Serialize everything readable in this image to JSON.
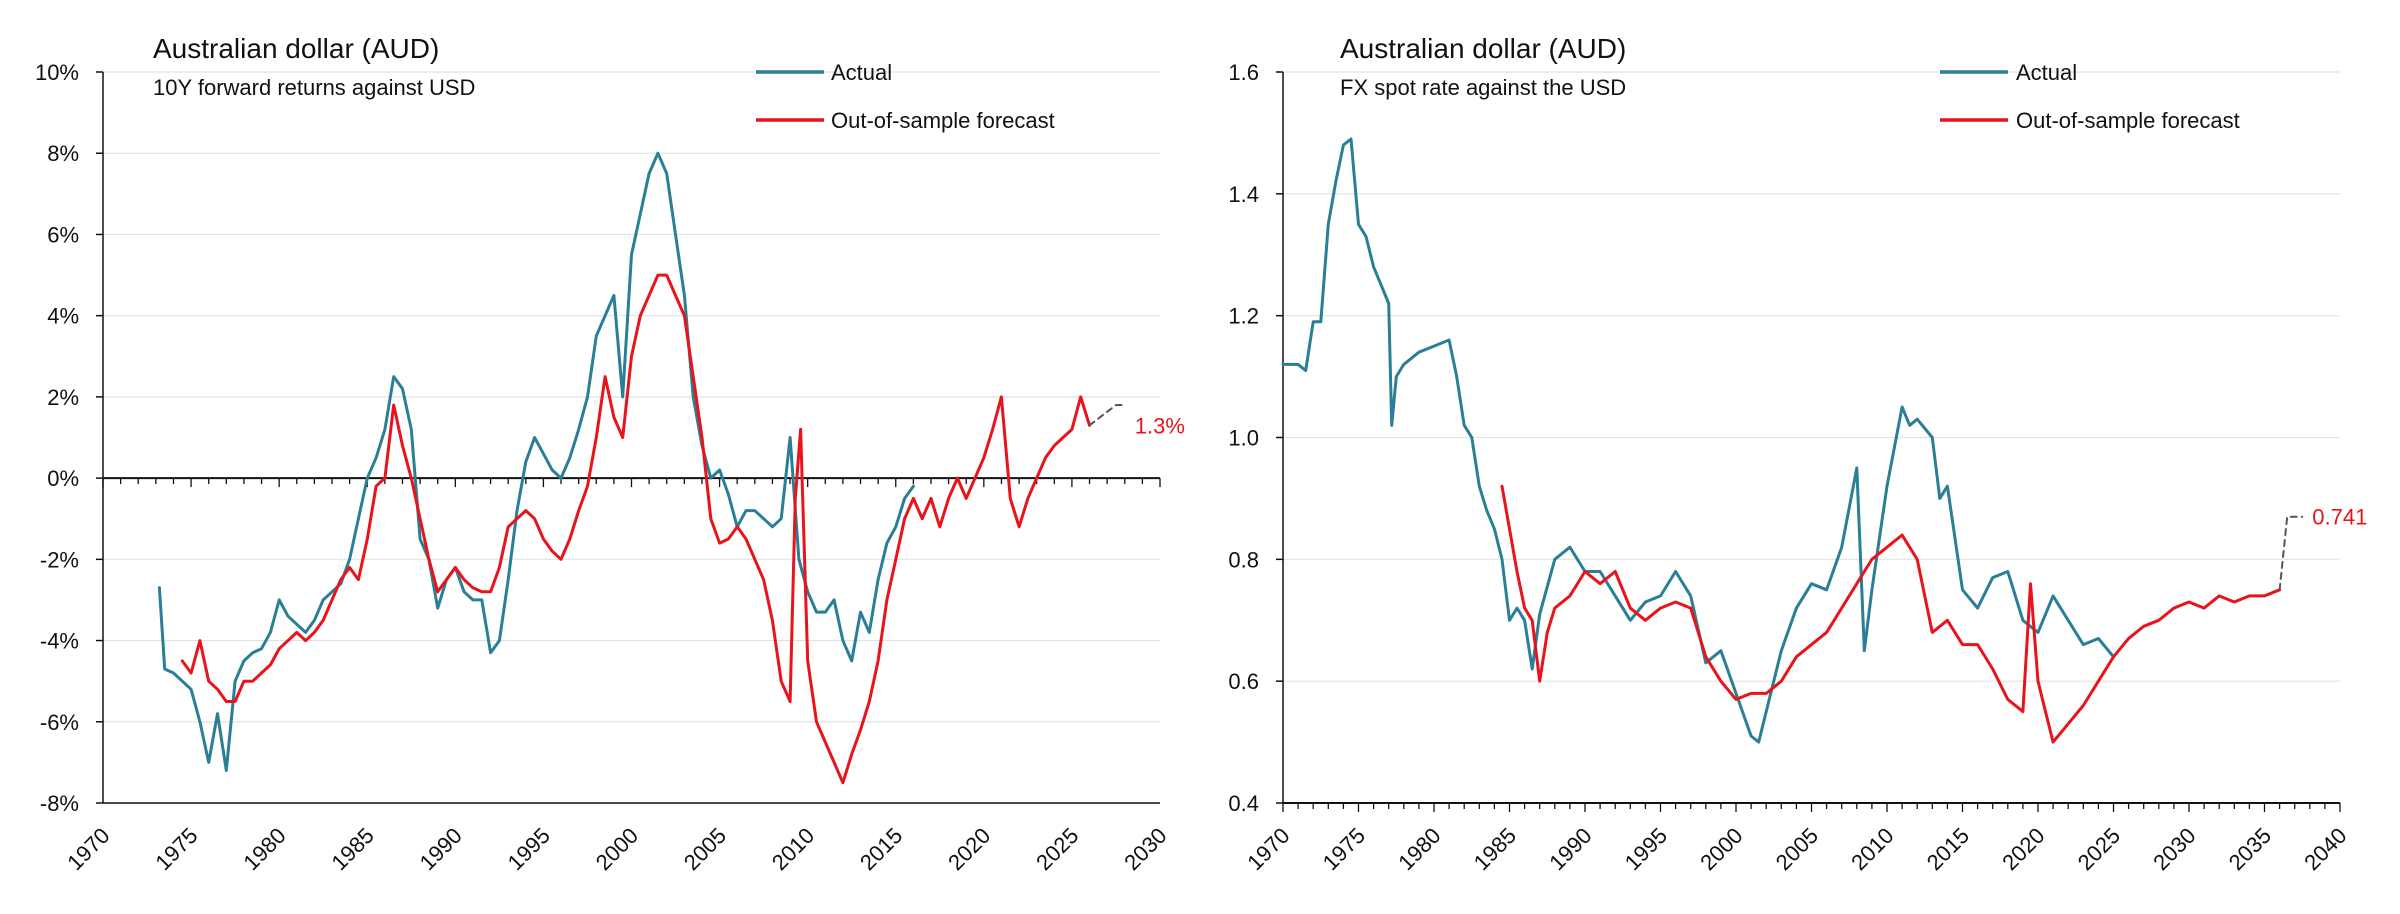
{
  "colors": {
    "actual": "#2a7f96",
    "forecast": "#e8131b",
    "grid": "#e2e2e2",
    "axis": "#111111",
    "projection": "#555555"
  },
  "chart_data": [
    {
      "type": "line",
      "title": "Australian dollar (AUD)",
      "subtitle": "10Y forward returns against USD",
      "xlim": [
        1970,
        2030
      ],
      "ylim": [
        -0.08,
        0.1
      ],
      "x_ticks": [
        1970,
        1975,
        1980,
        1985,
        1990,
        1995,
        2000,
        2005,
        2010,
        2015,
        2020,
        2025,
        2030
      ],
      "x_tick_labels": [
        "1970",
        "1975",
        "1980",
        "1985",
        "1990",
        "1995",
        "2000",
        "2005",
        "2010",
        "2015",
        "2020",
        "2025",
        "2030"
      ],
      "y_ticks": [
        -0.08,
        -0.06,
        -0.04,
        -0.02,
        0,
        0.02,
        0.04,
        0.06,
        0.08,
        0.1
      ],
      "y_tick_labels": [
        "-8%",
        "-6%",
        "-4%",
        "-2%",
        "0%",
        "2%",
        "4%",
        "6%",
        "8%",
        "10%"
      ],
      "zero_line": true,
      "legend": [
        "Actual",
        "Out-of-sample forecast"
      ],
      "series": [
        {
          "name": "Actual",
          "x": [
            1973.2,
            1973.5,
            1974,
            1974.5,
            1975,
            1975.5,
            1976,
            1976.5,
            1977,
            1977.5,
            1978,
            1978.5,
            1979,
            1979.5,
            1980,
            1980.5,
            1981,
            1981.5,
            1982,
            1982.5,
            1983,
            1983.5,
            1984,
            1984.5,
            1985,
            1985.5,
            1986,
            1986.5,
            1987,
            1987.5,
            1988,
            1988.5,
            1989,
            1989.5,
            1990,
            1990.5,
            1991,
            1991.5,
            1992,
            1992.5,
            1993,
            1993.5,
            1994,
            1994.5,
            1995,
            1995.5,
            1996,
            1996.5,
            1997,
            1997.5,
            1998,
            1998.5,
            1999,
            1999.5,
            2000,
            2000.5,
            2001,
            2001.5,
            2002,
            2002.5,
            2003,
            2003.5,
            2004,
            2004.5,
            2005,
            2005.5,
            2006,
            2006.5,
            2007,
            2007.5,
            2008,
            2008.5,
            2009,
            2009.5,
            2010,
            2010.5,
            2011,
            2011.5,
            2012,
            2012.5,
            2013,
            2013.5,
            2014,
            2014.5,
            2015,
            2015.5,
            2016
          ],
          "values": [
            -0.027,
            -0.047,
            -0.048,
            -0.05,
            -0.052,
            -0.06,
            -0.07,
            -0.058,
            -0.072,
            -0.05,
            -0.045,
            -0.043,
            -0.042,
            -0.038,
            -0.03,
            -0.034,
            -0.036,
            -0.038,
            -0.035,
            -0.03,
            -0.028,
            -0.026,
            -0.02,
            -0.01,
            0.0,
            0.005,
            0.012,
            0.025,
            0.022,
            0.012,
            -0.015,
            -0.02,
            -0.032,
            -0.025,
            -0.022,
            -0.028,
            -0.03,
            -0.03,
            -0.043,
            -0.04,
            -0.025,
            -0.008,
            0.004,
            0.01,
            0.006,
            0.002,
            0.0,
            0.005,
            0.012,
            0.02,
            0.035,
            0.04,
            0.045,
            0.02,
            0.055,
            0.065,
            0.075,
            0.08,
            0.075,
            0.06,
            0.045,
            0.02,
            0.008,
            0.0,
            0.002,
            -0.004,
            -0.012,
            -0.008,
            -0.008,
            -0.01,
            -0.012,
            -0.01,
            0.01,
            -0.02,
            -0.028,
            -0.033,
            -0.033,
            -0.03,
            -0.04,
            -0.045,
            -0.033,
            -0.038,
            -0.025,
            -0.016,
            -0.012,
            -0.005,
            -0.002
          ]
        },
        {
          "name": "Out-of-sample forecast",
          "x": [
            1974.5,
            1975,
            1975.5,
            1976,
            1976.5,
            1977,
            1977.5,
            1978,
            1978.5,
            1979,
            1979.5,
            1980,
            1980.5,
            1981,
            1981.5,
            1982,
            1982.5,
            1983,
            1983.5,
            1984,
            1984.5,
            1985,
            1985.5,
            1986,
            1986.5,
            1987,
            1987.5,
            1988,
            1988.5,
            1989,
            1989.5,
            1990,
            1990.5,
            1991,
            1991.5,
            1992,
            1992.5,
            1993,
            1993.5,
            1994,
            1994.5,
            1995,
            1995.5,
            1996,
            1996.5,
            1997,
            1997.5,
            1998,
            1998.5,
            1999,
            1999.5,
            2000,
            2000.5,
            2001,
            2001.5,
            2002,
            2002.5,
            2003,
            2003.5,
            2004,
            2004.5,
            2005,
            2005.5,
            2006,
            2006.5,
            2007,
            2007.5,
            2008,
            2008.5,
            2009,
            2009.3,
            2009.6,
            2010,
            2010.5,
            2011,
            2011.5,
            2012,
            2012.5,
            2013,
            2013.5,
            2014,
            2014.5,
            2015,
            2015.5,
            2016,
            2016.5,
            2017,
            2017.5,
            2018,
            2018.5,
            2019,
            2019.5,
            2020,
            2020.5,
            2021,
            2021.5,
            2022,
            2022.5,
            2023,
            2023.5,
            2024,
            2024.5,
            2025,
            2025.5,
            2026
          ],
          "values": [
            -0.045,
            -0.048,
            -0.04,
            -0.05,
            -0.052,
            -0.055,
            -0.055,
            -0.05,
            -0.05,
            -0.048,
            -0.046,
            -0.042,
            -0.04,
            -0.038,
            -0.04,
            -0.038,
            -0.035,
            -0.03,
            -0.025,
            -0.022,
            -0.025,
            -0.015,
            -0.002,
            0.0,
            0.018,
            0.008,
            0.0,
            -0.01,
            -0.02,
            -0.028,
            -0.025,
            -0.022,
            -0.025,
            -0.027,
            -0.028,
            -0.028,
            -0.022,
            -0.012,
            -0.01,
            -0.008,
            -0.01,
            -0.015,
            -0.018,
            -0.02,
            -0.015,
            -0.008,
            -0.002,
            0.01,
            0.025,
            0.015,
            0.01,
            0.03,
            0.04,
            0.045,
            0.05,
            0.05,
            0.045,
            0.04,
            0.025,
            0.01,
            -0.01,
            -0.016,
            -0.015,
            -0.012,
            -0.015,
            -0.02,
            -0.025,
            -0.035,
            -0.05,
            -0.055,
            -0.005,
            0.012,
            -0.045,
            -0.06,
            -0.065,
            -0.07,
            -0.075,
            -0.068,
            -0.062,
            -0.055,
            -0.045,
            -0.03,
            -0.02,
            -0.01,
            -0.005,
            -0.01,
            -0.005,
            -0.012,
            -0.005,
            0.0,
            -0.005,
            0.0,
            0.005,
            0.012,
            0.02,
            -0.005,
            -0.012,
            -0.005,
            0.0,
            0.005,
            0.008,
            0.01,
            0.012,
            0.02,
            0.013
          ]
        },
        {
          "name": "Projection",
          "x": [
            2026,
            2027.5,
            2028
          ],
          "values": [
            0.013,
            0.018,
            0.018
          ]
        }
      ],
      "annotations": [
        {
          "x": 2028,
          "y": 0.013,
          "text": "1.3%"
        }
      ]
    },
    {
      "type": "line",
      "title": "Australian dollar (AUD)",
      "subtitle": "FX spot rate against the USD",
      "xlim": [
        1970,
        2040
      ],
      "ylim": [
        0.4,
        1.6
      ],
      "x_ticks": [
        1970,
        1975,
        1980,
        1985,
        1990,
        1995,
        2000,
        2005,
        2010,
        2015,
        2020,
        2025,
        2030,
        2035,
        2040
      ],
      "x_tick_labels": [
        "1970",
        "1975",
        "1980",
        "1985",
        "1990",
        "1995",
        "2000",
        "2005",
        "2010",
        "2015",
        "2020",
        "2025",
        "2030",
        "2035",
        "2040"
      ],
      "y_ticks": [
        0.4,
        0.6,
        0.8,
        1.0,
        1.2,
        1.4,
        1.6
      ],
      "y_tick_labels": [
        "0.4",
        "0.6",
        "0.8",
        "1.0",
        "1.2",
        "1.4",
        "1.6"
      ],
      "zero_line": false,
      "legend": [
        "Actual",
        "Out-of-sample forecast"
      ],
      "series": [
        {
          "name": "Actual",
          "x": [
            1970,
            1971,
            1971.5,
            1972,
            1972.5,
            1973,
            1973.5,
            1974,
            1974.5,
            1975,
            1975.5,
            1976,
            1976.5,
            1977,
            1977.2,
            1977.5,
            1978,
            1979,
            1980,
            1981,
            1981.5,
            1982,
            1982.5,
            1983,
            1983.5,
            1984,
            1984.5,
            1985,
            1985.5,
            1986,
            1986.5,
            1987,
            1988,
            1989,
            1990,
            1991,
            1992,
            1993,
            1994,
            1995,
            1996,
            1997,
            1998,
            1999,
            2000,
            2001,
            2001.5,
            2002,
            2003,
            2004,
            2005,
            2006,
            2007,
            2008,
            2008.5,
            2009,
            2010,
            2011,
            2011.5,
            2012,
            2013,
            2013.5,
            2014,
            2015,
            2016,
            2017,
            2018,
            2019,
            2020,
            2021,
            2022,
            2023,
            2024,
            2025
          ],
          "values": [
            1.12,
            1.12,
            1.11,
            1.19,
            1.19,
            1.35,
            1.42,
            1.48,
            1.49,
            1.35,
            1.33,
            1.28,
            1.25,
            1.22,
            1.02,
            1.1,
            1.12,
            1.14,
            1.15,
            1.16,
            1.1,
            1.02,
            1.0,
            0.92,
            0.88,
            0.85,
            0.8,
            0.7,
            0.72,
            0.7,
            0.62,
            0.71,
            0.8,
            0.82,
            0.78,
            0.78,
            0.74,
            0.7,
            0.73,
            0.74,
            0.78,
            0.74,
            0.63,
            0.65,
            0.58,
            0.51,
            0.5,
            0.55,
            0.65,
            0.72,
            0.76,
            0.75,
            0.82,
            0.95,
            0.65,
            0.75,
            0.92,
            1.05,
            1.02,
            1.03,
            1.0,
            0.9,
            0.92,
            0.75,
            0.72,
            0.77,
            0.78,
            0.7,
            0.68,
            0.74,
            0.7,
            0.66,
            0.67,
            0.64
          ]
        },
        {
          "name": "Out-of-sample forecast",
          "x": [
            1984.5,
            1985,
            1985.5,
            1986,
            1986.5,
            1987,
            1987.5,
            1988,
            1989,
            1990,
            1991,
            1992,
            1993,
            1994,
            1995,
            1996,
            1997,
            1998,
            1999,
            2000,
            2001,
            2002,
            2003,
            2004,
            2005,
            2006,
            2007,
            2008,
            2009,
            2010,
            2011,
            2012,
            2013,
            2014,
            2015,
            2016,
            2017,
            2018,
            2019,
            2019.5,
            2020,
            2020.5,
            2021,
            2022,
            2023,
            2024,
            2025,
            2026,
            2027,
            2028,
            2029,
            2030,
            2031,
            2032,
            2033,
            2034,
            2035,
            2036
          ],
          "values": [
            0.92,
            0.85,
            0.78,
            0.72,
            0.7,
            0.6,
            0.68,
            0.72,
            0.74,
            0.78,
            0.76,
            0.78,
            0.72,
            0.7,
            0.72,
            0.73,
            0.72,
            0.64,
            0.6,
            0.57,
            0.58,
            0.58,
            0.6,
            0.64,
            0.66,
            0.68,
            0.72,
            0.76,
            0.8,
            0.82,
            0.84,
            0.8,
            0.68,
            0.7,
            0.66,
            0.66,
            0.62,
            0.57,
            0.55,
            0.76,
            0.6,
            0.55,
            0.5,
            0.53,
            0.56,
            0.6,
            0.64,
            0.67,
            0.69,
            0.7,
            0.72,
            0.73,
            0.72,
            0.74,
            0.73,
            0.74,
            0.74,
            0.75
          ]
        },
        {
          "name": "Projection",
          "x": [
            2036,
            2036.5,
            2037.5
          ],
          "values": [
            0.75,
            0.87,
            0.87
          ]
        }
      ],
      "annotations": [
        {
          "x": 2037.5,
          "y": 0.87,
          "text": "0.741"
        }
      ]
    }
  ]
}
